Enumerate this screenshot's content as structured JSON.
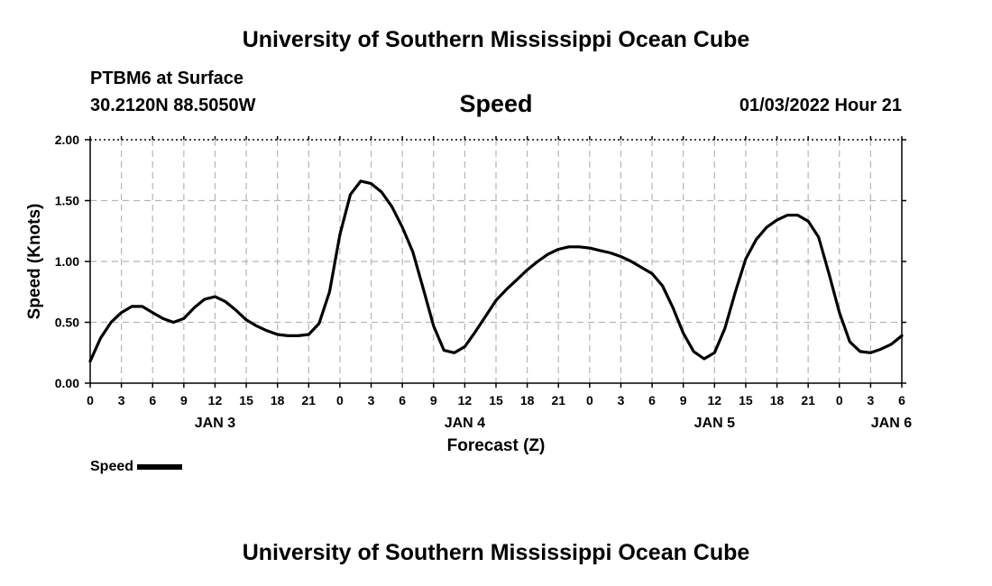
{
  "header": {
    "title": "University of Southern Mississippi Ocean Cube",
    "station": "PTBM6 at Surface",
    "coords": "30.2120N  88.5050W",
    "chart_name": "Speed",
    "datetime": "01/03/2022 Hour 21"
  },
  "footer": {
    "title": "University of Southern Mississippi Ocean Cube"
  },
  "legend": {
    "label": "Speed"
  },
  "chart_data": {
    "type": "line",
    "title": "Speed",
    "xlabel": "Forecast (Z)",
    "ylabel": "Speed (Knots)",
    "xlim": [
      0,
      78
    ],
    "ylim": [
      0,
      2
    ],
    "y_ticks": [
      "0.00",
      "0.50",
      "1.00",
      "1.50",
      "2.00"
    ],
    "x_tick_labels": [
      "0",
      "3",
      "6",
      "9",
      "12",
      "15",
      "18",
      "21",
      "0",
      "3",
      "6",
      "9",
      "12",
      "15",
      "18",
      "21",
      "0",
      "3",
      "6",
      "9",
      "12",
      "15",
      "18",
      "21",
      "0",
      "3",
      "6"
    ],
    "day_labels": [
      {
        "label": "JAN 3",
        "hour": 12
      },
      {
        "label": "JAN 4",
        "hour": 36
      },
      {
        "label": "JAN 5",
        "hour": 60
      },
      {
        "label": "JAN 6",
        "hour": 77
      }
    ],
    "grid": true,
    "series": [
      {
        "name": "Speed",
        "x": [
          0,
          1,
          2,
          3,
          4,
          5,
          6,
          7,
          8,
          9,
          10,
          11,
          12,
          13,
          14,
          15,
          16,
          17,
          18,
          19,
          20,
          21,
          22,
          23,
          24,
          25,
          26,
          27,
          28,
          29,
          30,
          31,
          32,
          33,
          34,
          35,
          36,
          37,
          38,
          39,
          40,
          41,
          42,
          43,
          44,
          45,
          46,
          47,
          48,
          49,
          50,
          51,
          52,
          53,
          54,
          55,
          56,
          57,
          58,
          59,
          60,
          61,
          62,
          63,
          64,
          65,
          66,
          67,
          68,
          69,
          70,
          71,
          72,
          73,
          74,
          75,
          76,
          77,
          78
        ],
        "values": [
          0.18,
          0.37,
          0.5,
          0.58,
          0.63,
          0.63,
          0.58,
          0.53,
          0.5,
          0.53,
          0.62,
          0.69,
          0.71,
          0.67,
          0.6,
          0.52,
          0.47,
          0.43,
          0.4,
          0.39,
          0.39,
          0.4,
          0.49,
          0.75,
          1.22,
          1.55,
          1.66,
          1.64,
          1.57,
          1.45,
          1.28,
          1.08,
          0.78,
          0.47,
          0.27,
          0.25,
          0.3,
          0.42,
          0.55,
          0.68,
          0.77,
          0.85,
          0.93,
          1.0,
          1.06,
          1.1,
          1.12,
          1.12,
          1.11,
          1.09,
          1.07,
          1.04,
          1.0,
          0.95,
          0.9,
          0.8,
          0.62,
          0.41,
          0.26,
          0.2,
          0.25,
          0.45,
          0.75,
          1.02,
          1.18,
          1.28,
          1.34,
          1.38,
          1.38,
          1.33,
          1.2,
          0.9,
          0.58,
          0.34,
          0.26,
          0.25,
          0.28,
          0.32,
          0.39
        ]
      }
    ]
  }
}
